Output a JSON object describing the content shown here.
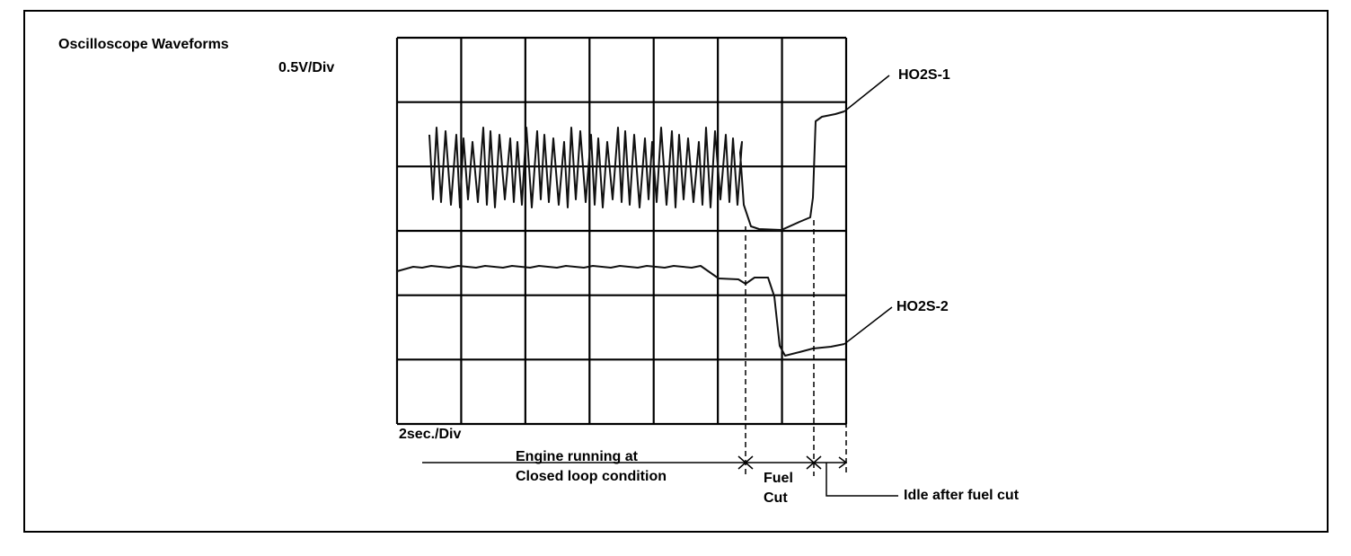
{
  "title": "Oscilloscope Waveforms",
  "scale": {
    "voltage": "0.5V/Div",
    "time": "2sec./Div"
  },
  "traces": [
    {
      "label": "HO2S-1"
    },
    {
      "label": "HO2S-2"
    }
  ],
  "phases": [
    {
      "lines": [
        "Engine running at",
        "Closed loop  condition"
      ]
    },
    {
      "lines": [
        "Fuel",
        "Cut"
      ]
    },
    {
      "lines": [
        "Idle after fuel cut"
      ]
    }
  ]
}
